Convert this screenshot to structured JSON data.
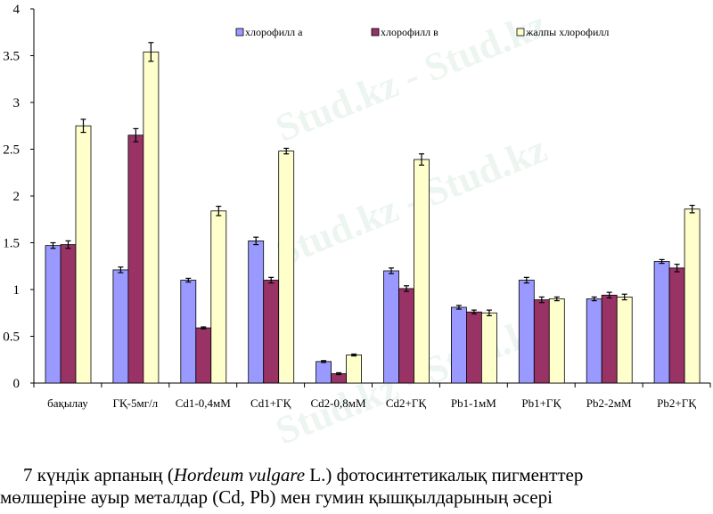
{
  "watermark": "Stud.kz - Stud.kz",
  "caption": {
    "line1_prefix": "7 күндік арпаның (",
    "line1_italic": "Hordeum vulgare",
    "line1_suffix": " L.) фотосинтетикалық пигменттер",
    "line2": "мөлшеріне ауыр металдар (Cd, Pb) мен гумин қышқылдарының әсері"
  },
  "chart_data": {
    "type": "bar",
    "title": "",
    "xlabel": "",
    "ylabel": "",
    "ylim": [
      0,
      4
    ],
    "yticks": [
      "0",
      "0.5",
      "1",
      "1.5",
      "2",
      "2.5",
      "3",
      "3.5",
      "4"
    ],
    "grid": false,
    "legend_position": "top-right",
    "categories": [
      "бақылау",
      "ГҚ-5мг/л",
      "Cd1-0,4мМ",
      "Cd1+ГҚ",
      "Cd2-0,8мМ",
      "Cd2+ГҚ",
      "Pb1-1мМ",
      "Pb1+ГҚ",
      "Pb2-2мМ",
      "Pb2+ГҚ"
    ],
    "series": [
      {
        "name": "хлорофилл а",
        "color": "#9999ff",
        "values": [
          1.47,
          1.21,
          1.1,
          1.52,
          0.23,
          1.2,
          0.81,
          1.1,
          0.9,
          1.3
        ],
        "errors": [
          0.03,
          0.03,
          0.02,
          0.04,
          0.01,
          0.03,
          0.02,
          0.03,
          0.02,
          0.02
        ]
      },
      {
        "name": "хлорофилл в",
        "color": "#993366",
        "values": [
          1.48,
          2.65,
          0.59,
          1.1,
          0.1,
          1.01,
          0.76,
          0.89,
          0.94,
          1.23
        ],
        "errors": [
          0.04,
          0.07,
          0.01,
          0.03,
          0.01,
          0.03,
          0.02,
          0.03,
          0.03,
          0.04
        ]
      },
      {
        "name": "жалпы хлорофилл",
        "color": "#ffffcc",
        "values": [
          2.75,
          3.54,
          1.84,
          2.48,
          0.3,
          2.39,
          0.75,
          0.9,
          0.92,
          1.86
        ],
        "errors": [
          0.07,
          0.1,
          0.05,
          0.03,
          0.01,
          0.06,
          0.03,
          0.02,
          0.03,
          0.04
        ]
      }
    ]
  }
}
